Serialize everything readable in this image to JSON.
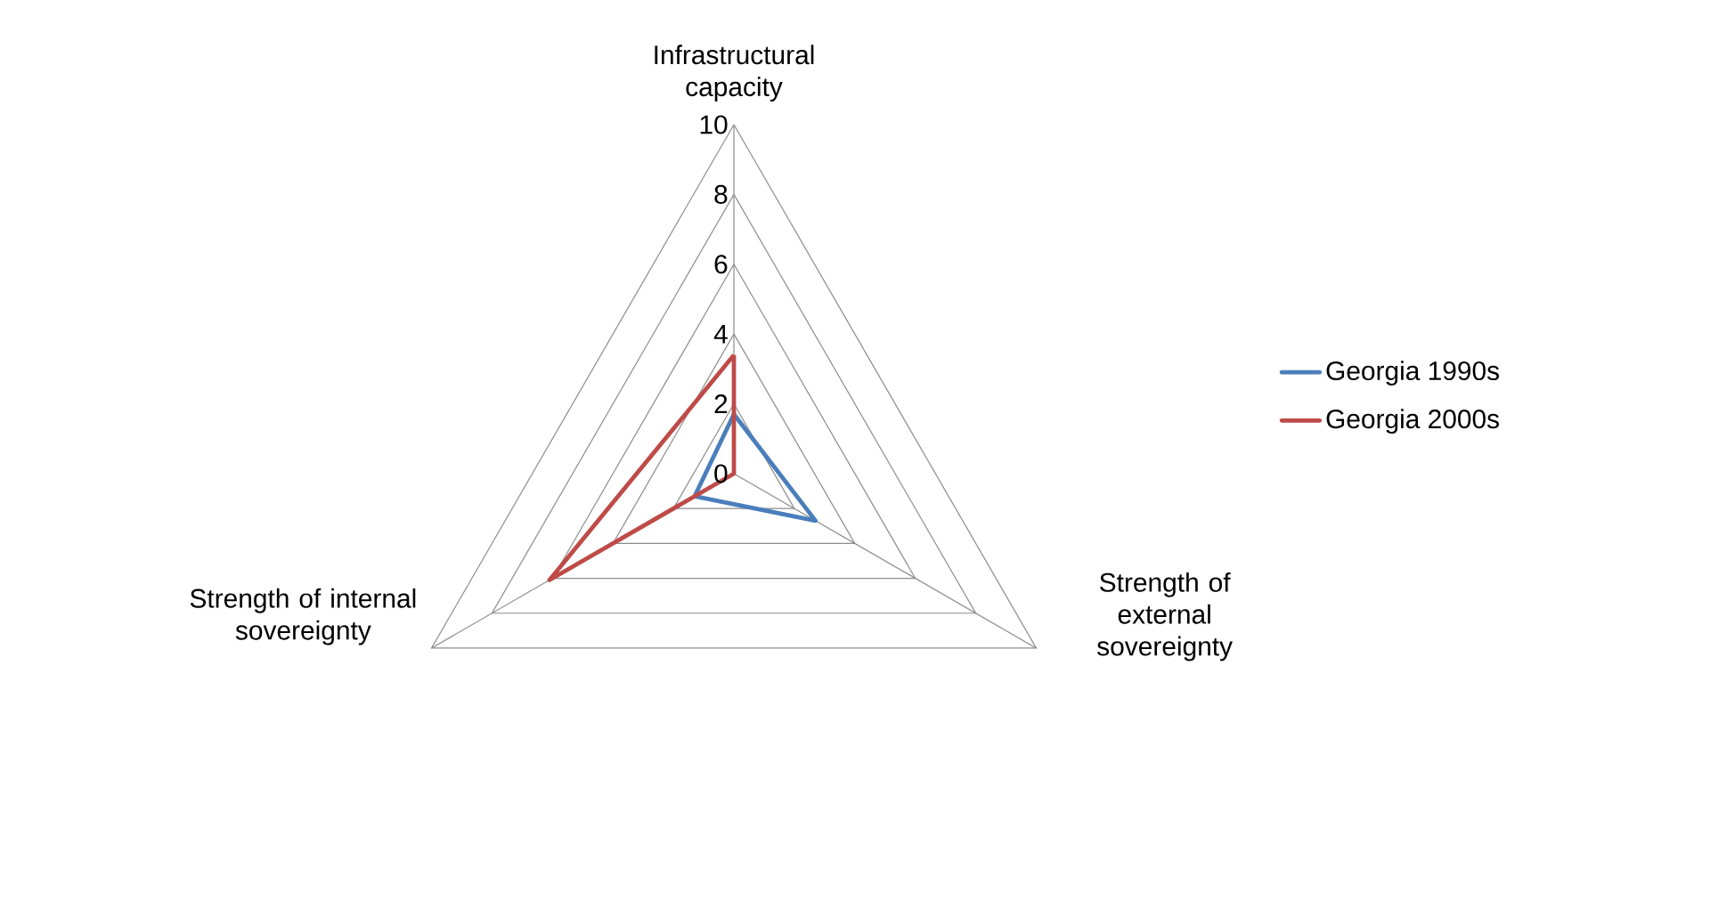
{
  "chart_data": {
    "type": "radar",
    "categories": [
      "Infrastructural capacity",
      "Strength of external sovereignty",
      "Strength of internal sovereignty"
    ],
    "series": [
      {
        "name": "Georgia 1990s",
        "color": "#4a7ebb",
        "values": [
          1.7,
          2.7,
          1.3
        ]
      },
      {
        "name": "Georgia 2000s",
        "color": "#be4b48",
        "values": [
          3.4,
          0,
          6.1
        ]
      }
    ],
    "ylim": [
      0,
      10
    ],
    "yticks": [
      0,
      2,
      4,
      6,
      8,
      10
    ],
    "grid": true,
    "legend": "right"
  }
}
